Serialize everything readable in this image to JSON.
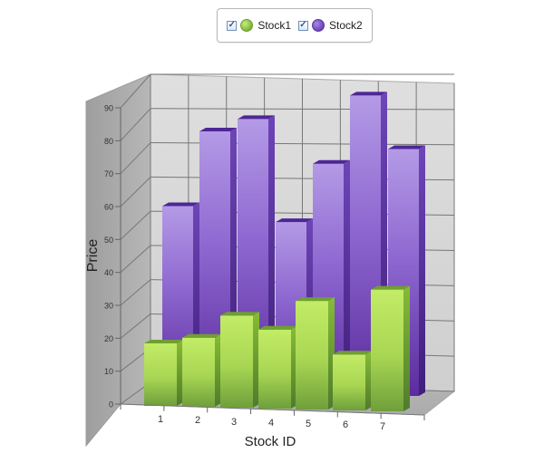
{
  "legend": {
    "items": [
      {
        "label": "Stock1",
        "checked": true,
        "color": "#8bc34a"
      },
      {
        "label": "Stock2",
        "checked": true,
        "color": "#7a4fc7"
      }
    ]
  },
  "chart_data": {
    "type": "bar",
    "categories": [
      "1",
      "2",
      "3",
      "4",
      "5",
      "6",
      "7"
    ],
    "series": [
      {
        "name": "Stock1",
        "values": [
          19,
          21,
          28,
          24,
          33,
          17,
          37
        ]
      },
      {
        "name": "Stock2",
        "values": [
          56,
          79,
          83,
          52,
          70,
          91,
          75
        ]
      }
    ],
    "xlabel": "Stock ID",
    "ylabel": "Price",
    "ylim": [
      0,
      90
    ],
    "yticks": [
      0,
      10,
      20,
      30,
      40,
      50,
      60,
      70,
      80,
      90
    ],
    "grid": true,
    "legend_position": "top-center",
    "three_d": true,
    "colors": {
      "stock1": "#8bc34a",
      "stock2": "#7a4fc7",
      "wall": "#d9d9d9",
      "wall_dark": "#a8a8a8",
      "grid": "#777777"
    }
  }
}
